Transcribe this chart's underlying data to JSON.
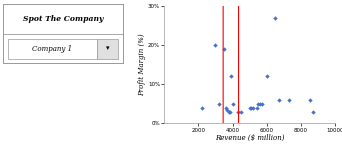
{
  "title": "",
  "xlabel": "Revenue ($ million)",
  "ylabel": "Profit Margin (%)",
  "xlim": [
    0,
    10000
  ],
  "ylim": [
    0,
    0.3
  ],
  "xticks": [
    0,
    2000,
    4000,
    6000,
    8000,
    10000
  ],
  "yticks": [
    0.0,
    0.1,
    0.2,
    0.3
  ],
  "ytick_labels": [
    "0%",
    "10%",
    "20%",
    "30%"
  ],
  "scatter_color": "#4472C4",
  "scatter_points": [
    [
      2200,
      0.04
    ],
    [
      3000,
      0.2
    ],
    [
      3200,
      0.05
    ],
    [
      3500,
      0.19
    ],
    [
      3600,
      0.04
    ],
    [
      3700,
      0.035
    ],
    [
      3800,
      0.03
    ],
    [
      3850,
      0.03
    ],
    [
      4000,
      0.05
    ],
    [
      4300,
      0.03
    ],
    [
      4500,
      0.03
    ],
    [
      5000,
      0.04
    ],
    [
      5100,
      0.04
    ],
    [
      5200,
      0.04
    ],
    [
      5400,
      0.04
    ],
    [
      5500,
      0.05
    ],
    [
      5600,
      0.05
    ],
    [
      5700,
      0.05
    ],
    [
      6000,
      0.12
    ],
    [
      6500,
      0.27
    ],
    [
      6700,
      0.06
    ],
    [
      7300,
      0.06
    ],
    [
      8500,
      0.06
    ],
    [
      8700,
      0.03
    ]
  ],
  "highlighted_point": [
    3900,
    0.12
  ],
  "highlight_color": "red",
  "legend_title": "Spot The Company",
  "legend_label": "Company 1",
  "bg_color": "#FFFFFF",
  "plot_bg_color": "#FFFFFF"
}
